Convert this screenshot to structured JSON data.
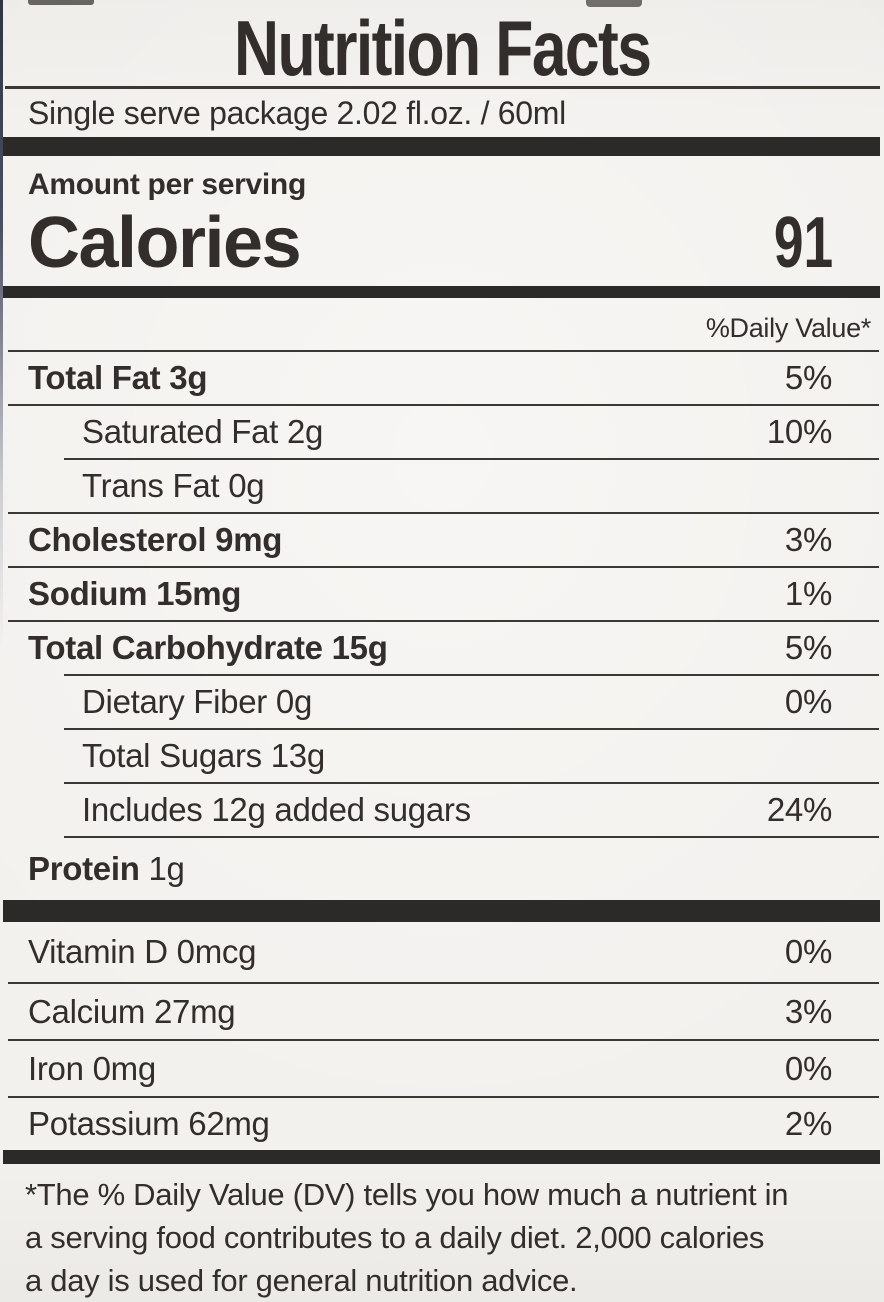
{
  "label": {
    "title": "Nutrition Facts",
    "serving_statement": "Single serve package 2.02 fl.oz. / 60ml",
    "amount_per_serving": "Amount per serving",
    "calories_label": "Calories",
    "calories_value": "91",
    "daily_value_header": "%Daily Value*",
    "nutrients": [
      {
        "name": "Total Fat",
        "amount": "3g",
        "dv": "5%"
      },
      {
        "name": "Saturated Fat",
        "amount": "2g",
        "dv": "10%"
      },
      {
        "name": "Trans Fat",
        "amount": "0g",
        "dv": ""
      },
      {
        "name": "Cholesterol",
        "amount": "9mg",
        "dv": "3%"
      },
      {
        "name": "Sodium",
        "amount": "15mg",
        "dv": "1%"
      },
      {
        "name": "Total Carbohydrate",
        "amount": "15g",
        "dv": "5%"
      },
      {
        "name": "Dietary Fiber",
        "amount": "0g",
        "dv": "0%"
      },
      {
        "name": "Total Sugars",
        "amount": "13g",
        "dv": ""
      },
      {
        "name": "Includes 12g added sugars",
        "amount": "",
        "dv": "24%"
      },
      {
        "name": "Protein",
        "amount": "1g",
        "dv": ""
      }
    ],
    "micronutrients": [
      {
        "name": "Vitamin D",
        "amount": "0mcg",
        "dv": "0%"
      },
      {
        "name": "Calcium",
        "amount": "27mg",
        "dv": "3%"
      },
      {
        "name": "Iron",
        "amount": "0mg",
        "dv": "0%"
      },
      {
        "name": "Potassium",
        "amount": "62mg",
        "dv": "2%"
      }
    ],
    "footnote_lines": [
      "*The % Daily Value (DV) tells you how much a nutrient in",
      "a serving food contributes to a daily diet. 2,000 calories",
      "a day is used for general nutrition advice."
    ]
  },
  "colors": {
    "ink": "#332e2b",
    "rule": "#3c3733",
    "bar": "#2c2a29",
    "paper": "#f3f1ee"
  }
}
